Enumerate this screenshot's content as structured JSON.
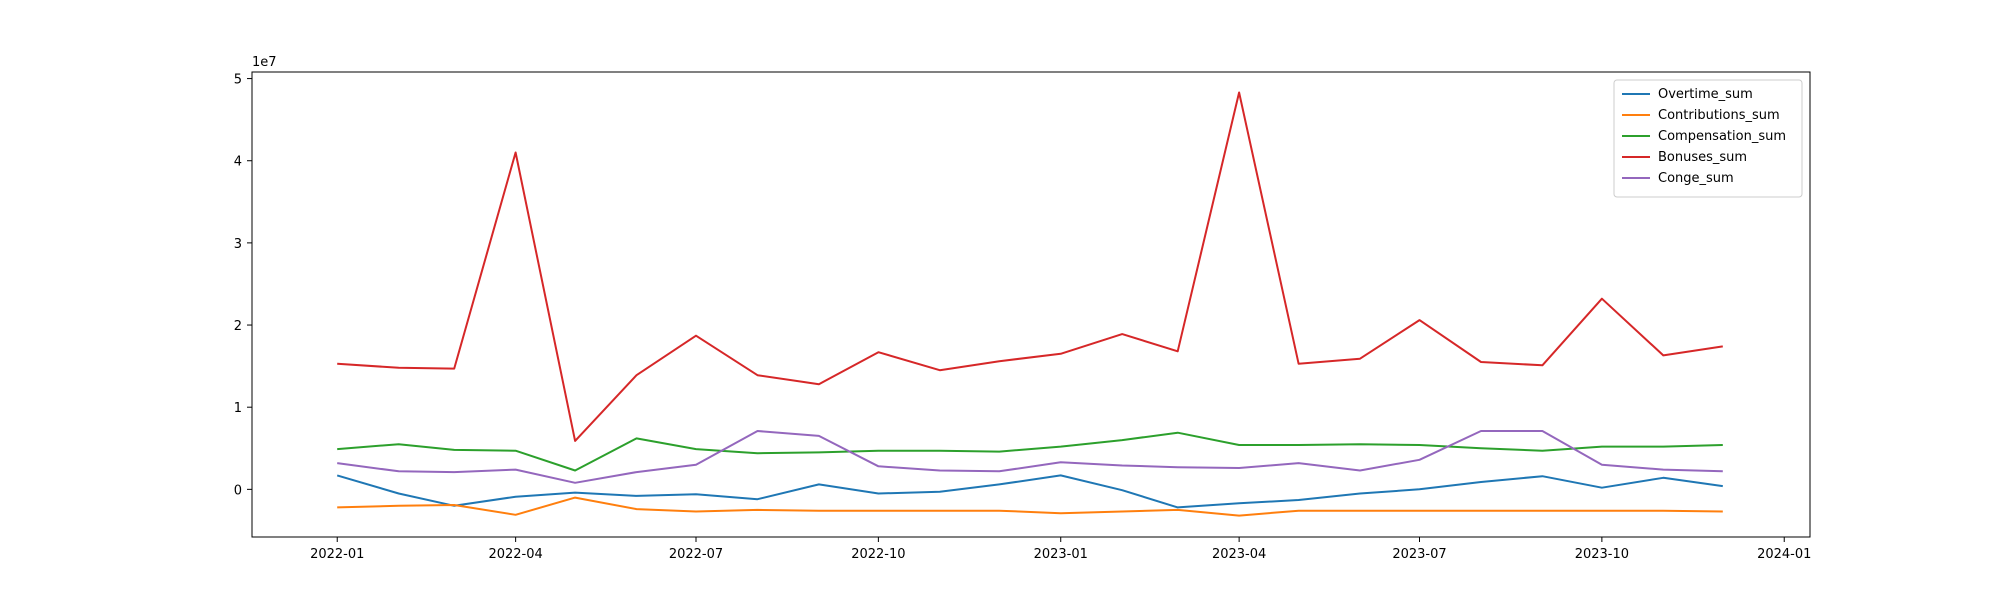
{
  "chart_data": {
    "type": "line",
    "title": "",
    "xlabel": "",
    "ylabel": "",
    "y_offset_label": "1e7",
    "x": [
      "2022-01-01",
      "2022-02-01",
      "2022-03-01",
      "2022-04-01",
      "2022-05-01",
      "2022-06-01",
      "2022-07-01",
      "2022-08-01",
      "2022-09-01",
      "2022-10-01",
      "2022-11-01",
      "2022-12-01",
      "2023-01-01",
      "2023-02-01",
      "2023-03-01",
      "2023-04-01",
      "2023-05-01",
      "2023-06-01",
      "2023-07-01",
      "2023-08-01",
      "2023-09-01",
      "2023-10-01",
      "2023-11-01",
      "2023-12-01"
    ],
    "xlim": [
      "2021-11-19",
      "2024-01-14"
    ],
    "ylim": [
      -5800000,
      50800000
    ],
    "x_ticks": [
      {
        "date": "2022-01-01",
        "label": "2022-01"
      },
      {
        "date": "2022-04-01",
        "label": "2022-04"
      },
      {
        "date": "2022-07-01",
        "label": "2022-07"
      },
      {
        "date": "2022-10-01",
        "label": "2022-10"
      },
      {
        "date": "2023-01-01",
        "label": "2023-01"
      },
      {
        "date": "2023-04-01",
        "label": "2023-04"
      },
      {
        "date": "2023-07-01",
        "label": "2023-07"
      },
      {
        "date": "2023-10-01",
        "label": "2023-10"
      },
      {
        "date": "2024-01-01",
        "label": "2024-01"
      }
    ],
    "y_ticks": [
      {
        "value": 0,
        "label": "0"
      },
      {
        "value": 10000000,
        "label": "1"
      },
      {
        "value": 20000000,
        "label": "2"
      },
      {
        "value": 30000000,
        "label": "3"
      },
      {
        "value": 40000000,
        "label": "4"
      },
      {
        "value": 50000000,
        "label": "5"
      }
    ],
    "grid": false,
    "legend_position": "top-right",
    "series": [
      {
        "name": "Overtime_sum",
        "color": "#1f77b4",
        "values": [
          1700000,
          -500000,
          -2000000,
          -900000,
          -400000,
          -800000,
          -600000,
          -1200000,
          600000,
          -500000,
          -300000,
          600000,
          1700000,
          -100000,
          -2200000,
          -1700000,
          -1300000,
          -500000,
          0,
          900000,
          1600000,
          200000,
          1400000,
          400000
        ]
      },
      {
        "name": "Contributions_sum",
        "color": "#ff7f0e",
        "values": [
          -2200000,
          -2000000,
          -1900000,
          -3100000,
          -1000000,
          -2400000,
          -2700000,
          -2500000,
          -2600000,
          -2600000,
          -2600000,
          -2600000,
          -2900000,
          -2700000,
          -2500000,
          -3200000,
          -2600000,
          -2600000,
          -2600000,
          -2600000,
          -2600000,
          -2600000,
          -2600000,
          -2700000
        ]
      },
      {
        "name": "Compensation_sum",
        "color": "#2ca02c",
        "values": [
          4900000,
          5500000,
          4800000,
          4700000,
          2300000,
          6200000,
          4900000,
          4400000,
          4500000,
          4700000,
          4700000,
          4600000,
          5200000,
          6000000,
          6900000,
          5400000,
          5400000,
          5500000,
          5400000,
          5000000,
          4700000,
          5200000,
          5200000,
          5400000
        ]
      },
      {
        "name": "Bonuses_sum",
        "color": "#d62728",
        "values": [
          15300000,
          14800000,
          14700000,
          41000000,
          5900000,
          13900000,
          18700000,
          13900000,
          12800000,
          16700000,
          14500000,
          15600000,
          16500000,
          18900000,
          16800000,
          48300000,
          15300000,
          15900000,
          20600000,
          15500000,
          15100000,
          23200000,
          16300000,
          17400000
        ]
      },
      {
        "name": "Conge_sum",
        "color": "#9467bd",
        "values": [
          3200000,
          2200000,
          2100000,
          2400000,
          800000,
          2100000,
          3000000,
          7100000,
          6500000,
          2800000,
          2300000,
          2200000,
          3300000,
          2900000,
          2700000,
          2600000,
          3200000,
          2300000,
          3600000,
          7100000,
          7100000,
          3000000,
          2400000,
          2200000
        ]
      }
    ]
  }
}
